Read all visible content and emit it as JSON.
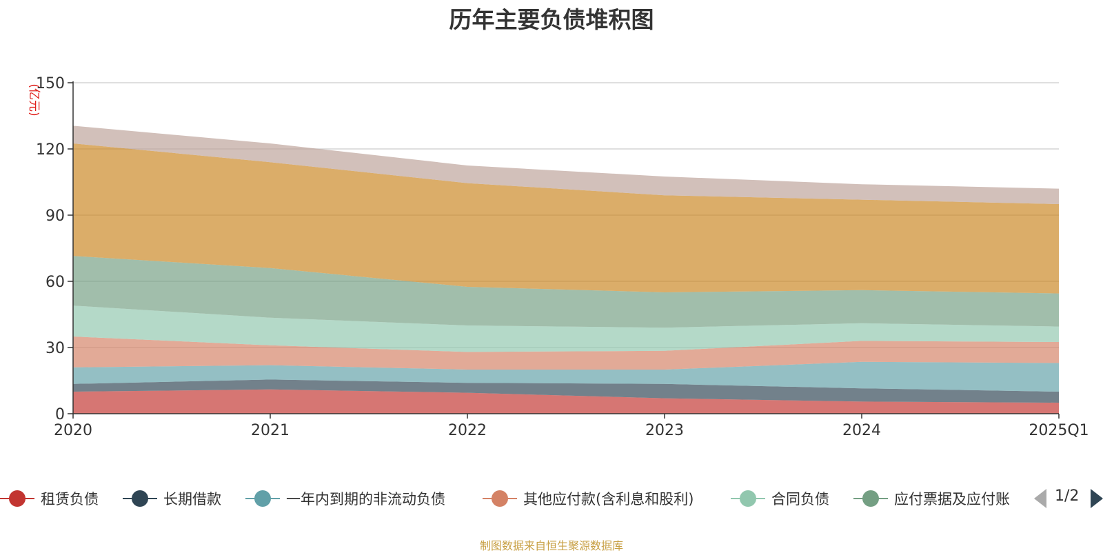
{
  "chart_data": {
    "type": "area",
    "stacked": true,
    "title": "历年主要负债堆积图",
    "ylabel": "(亿元)",
    "xlabel": "",
    "ylim": [
      0,
      150
    ],
    "yticks": [
      0,
      30,
      60,
      90,
      120,
      150
    ],
    "categories": [
      "2020",
      "2021",
      "2022",
      "2023",
      "2024",
      "2025Q1"
    ],
    "grid": true,
    "series": [
      {
        "name": "租赁负债",
        "color": "#c23531",
        "values": [
          10,
          11,
          9.5,
          7,
          5.5,
          5
        ]
      },
      {
        "name": "长期借款",
        "color": "#2f4554",
        "values": [
          3.5,
          4.5,
          4.5,
          6.5,
          6,
          5
        ]
      },
      {
        "name": "一年内到期的非流动负债",
        "color": "#61a0a8",
        "values": [
          7.5,
          6.5,
          6,
          6.5,
          12,
          13
        ]
      },
      {
        "name": "其他应付款(含利息和股利)",
        "color": "#d48265",
        "values": [
          14,
          9,
          8,
          8.5,
          9.5,
          9.5
        ]
      },
      {
        "name": "合同负债",
        "color": "#91c7ae",
        "values": [
          14,
          12.5,
          12,
          10.5,
          8,
          7
        ]
      },
      {
        "name": "应付票据及应付账款",
        "color": "#749f83",
        "values": [
          22.5,
          22.5,
          17.5,
          16,
          15,
          15
        ]
      },
      {
        "name": "",
        "color": "#ca8622",
        "values": [
          51,
          48,
          47,
          44,
          41,
          40.5
        ]
      },
      {
        "name": "",
        "color": "#bda29a",
        "values": [
          8,
          8.5,
          8,
          8.5,
          7,
          7
        ]
      }
    ],
    "legend_position": "bottom"
  },
  "legend": {
    "items": [
      "租赁负债",
      "长期借款",
      "一年内到期的非流动负债",
      "其他应付款(含利息和股利)",
      "合同负债",
      "应付票据及应付账"
    ],
    "pager": "1/2"
  },
  "source_note": "制图数据来自恒生聚源数据库"
}
